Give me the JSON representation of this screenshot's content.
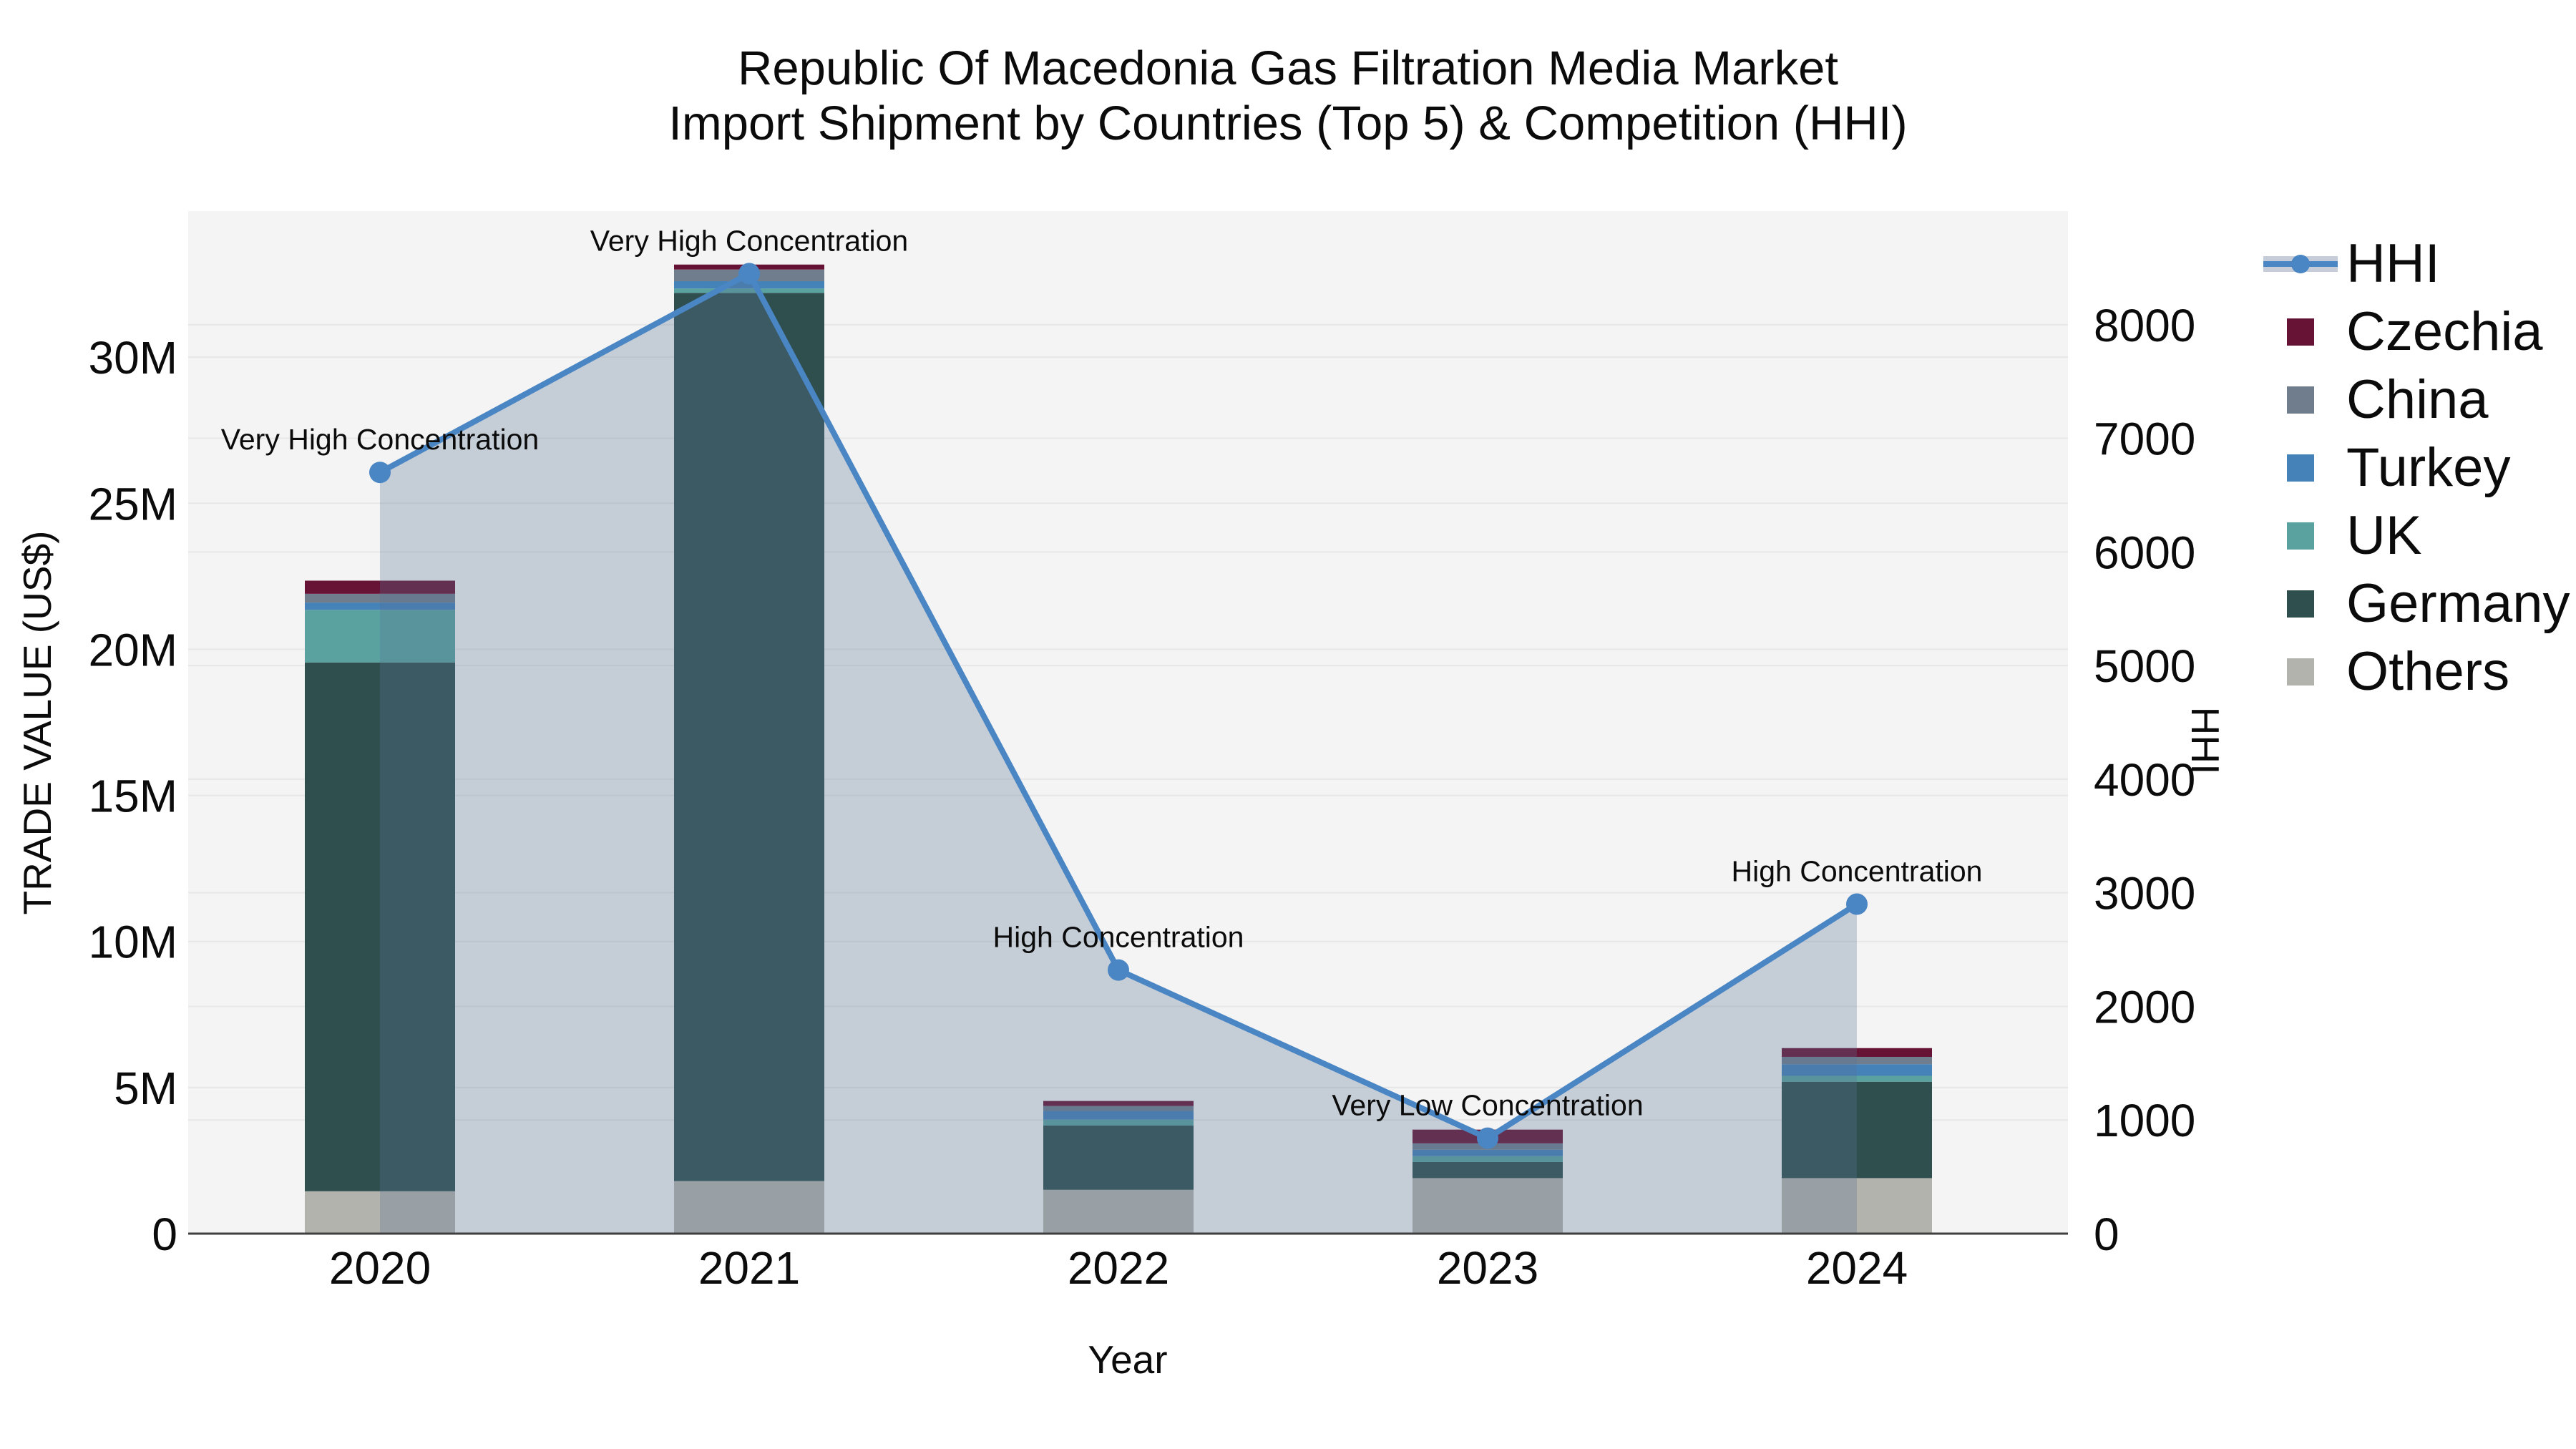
{
  "title": {
    "line1": "Republic Of Macedonia Gas Filtration Media Market",
    "line2": "Import Shipment by Countries (Top 5) & Competition (HHI)"
  },
  "axis_titles": {
    "x": "Year",
    "y_left": "TRADE VALUE (US$)",
    "y_right": "HHI"
  },
  "colors": {
    "plot_bg": "#f4f4f4",
    "grid": "#e7e7e7",
    "axis_line": "#3f3f3f",
    "text": "#0b0b0b",
    "hhi_line": "#4a86c4",
    "hhi_area": "rgba(90,115,150,0.30)",
    "legend_band": "#c6cdd8"
  },
  "legend": {
    "items": [
      {
        "id": "hhi",
        "label": "HHI",
        "type": "line",
        "color": "#4a86c4"
      },
      {
        "id": "czechia",
        "label": "Czechia",
        "type": "swatch",
        "color": "#671335"
      },
      {
        "id": "china",
        "label": "China",
        "type": "swatch",
        "color": "#6f7d8d"
      },
      {
        "id": "turkey",
        "label": "Turkey",
        "type": "swatch",
        "color": "#4482b8"
      },
      {
        "id": "uk",
        "label": "UK",
        "type": "swatch",
        "color": "#5aa2a0"
      },
      {
        "id": "germany",
        "label": "Germany",
        "type": "swatch",
        "color": "#2f4f4e"
      },
      {
        "id": "others",
        "label": "Others",
        "type": "swatch",
        "color": "#b3b3ae"
      }
    ]
  },
  "chart_data": {
    "type": [
      "bar",
      "line"
    ],
    "subtype": "stacked-bars-with-secondary-axis-line-area",
    "title": "Republic Of Macedonia Gas Filtration Media Market Import Shipment by Countries (Top 5) & Competition (HHI)",
    "xlabel": "Year",
    "categories": [
      "2020",
      "2021",
      "2022",
      "2023",
      "2024"
    ],
    "bar_series_bottom_to_top": [
      {
        "name": "Others",
        "color": "#b3b3ae",
        "values": [
          1450000,
          1800000,
          1500000,
          1900000,
          1900000
        ]
      },
      {
        "name": "Germany",
        "color": "#2f4f4e",
        "values": [
          18100000,
          30400000,
          2200000,
          550000,
          3300000
        ]
      },
      {
        "name": "UK",
        "color": "#5aa2a0",
        "values": [
          1800000,
          150000,
          200000,
          200000,
          200000
        ]
      },
      {
        "name": "Turkey",
        "color": "#4482b8",
        "values": [
          250000,
          250000,
          300000,
          220000,
          400000
        ]
      },
      {
        "name": "China",
        "color": "#6f7d8d",
        "values": [
          300000,
          400000,
          170000,
          220000,
          250000
        ]
      },
      {
        "name": "Czechia",
        "color": "#671335",
        "values": [
          450000,
          170000,
          170000,
          470000,
          300000
        ]
      }
    ],
    "line_series": {
      "name": "HHI",
      "axis": "right",
      "color": "#4a86c4",
      "area": true,
      "values": [
        6700,
        8450,
        2320,
        840,
        2900
      ]
    },
    "annotations": [
      "Very High Concentration",
      "Very High Concentration",
      "High Concentration",
      "Very Low Concentration",
      "High Concentration"
    ],
    "y_left": {
      "label": "TRADE VALUE (US$)",
      "range": [
        0,
        35000000
      ],
      "ticks": [
        {
          "value": 0,
          "label": "0"
        },
        {
          "value": 5000000,
          "label": "5M"
        },
        {
          "value": 10000000,
          "label": "10M"
        },
        {
          "value": 15000000,
          "label": "15M"
        },
        {
          "value": 20000000,
          "label": "20M"
        },
        {
          "value": 25000000,
          "label": "25M"
        },
        {
          "value": 30000000,
          "label": "30M"
        }
      ]
    },
    "y_right": {
      "label": "HHI",
      "range": [
        0,
        9000
      ],
      "ticks": [
        {
          "value": 0,
          "label": "0"
        },
        {
          "value": 1000,
          "label": "1000"
        },
        {
          "value": 2000,
          "label": "2000"
        },
        {
          "value": 3000,
          "label": "3000"
        },
        {
          "value": 4000,
          "label": "4000"
        },
        {
          "value": 5000,
          "label": "5000"
        },
        {
          "value": 6000,
          "label": "6000"
        },
        {
          "value": 7000,
          "label": "7000"
        },
        {
          "value": 8000,
          "label": "8000"
        }
      ]
    },
    "grid": true,
    "legend_position": "right"
  }
}
